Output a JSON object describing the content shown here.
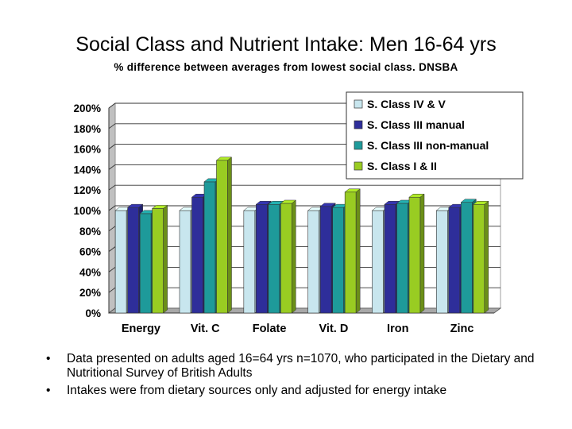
{
  "slide": {
    "title": "Social Class and Nutrient Intake: Men 16-64 yrs",
    "subtitle": "% difference between averages from lowest social class. DNSBA"
  },
  "chart_data": {
    "type": "bar",
    "categories": [
      "Energy",
      "Vit. C",
      "Folate",
      "Vit. D",
      "Iron",
      "Zinc"
    ],
    "series": [
      {
        "name": "S. Class IV & V",
        "color": "#c8e6ee",
        "values": [
          100,
          100,
          100,
          100,
          100,
          100
        ]
      },
      {
        "name": "S. Class III manual",
        "color": "#2e2e9a",
        "values": [
          103,
          113,
          106,
          104,
          106,
          103
        ]
      },
      {
        "name": "S. Class III non-manual",
        "color": "#1e9a9a",
        "values": [
          97,
          128,
          106,
          103,
          107,
          108
        ]
      },
      {
        "name": "S. Class I & II",
        "color": "#99cc22",
        "values": [
          102,
          149,
          107,
          118,
          113,
          106
        ]
      }
    ],
    "ylim": [
      0,
      200
    ],
    "yticks": [
      "0%",
      "20%",
      "40%",
      "60%",
      "80%",
      "100%",
      "120%",
      "140%",
      "160%",
      "180%",
      "200%"
    ],
    "grid": true,
    "legend": "top-right",
    "style": "3d-bar"
  },
  "bullets": [
    {
      "symbol": "•",
      "text": "Data presented on adults aged 16=64 yrs n=1070, who participated in the Dietary and Nutritional Survey of British Adults"
    },
    {
      "symbol": "•",
      "text": "Intakes were from dietary sources only and adjusted for energy intake"
    }
  ]
}
